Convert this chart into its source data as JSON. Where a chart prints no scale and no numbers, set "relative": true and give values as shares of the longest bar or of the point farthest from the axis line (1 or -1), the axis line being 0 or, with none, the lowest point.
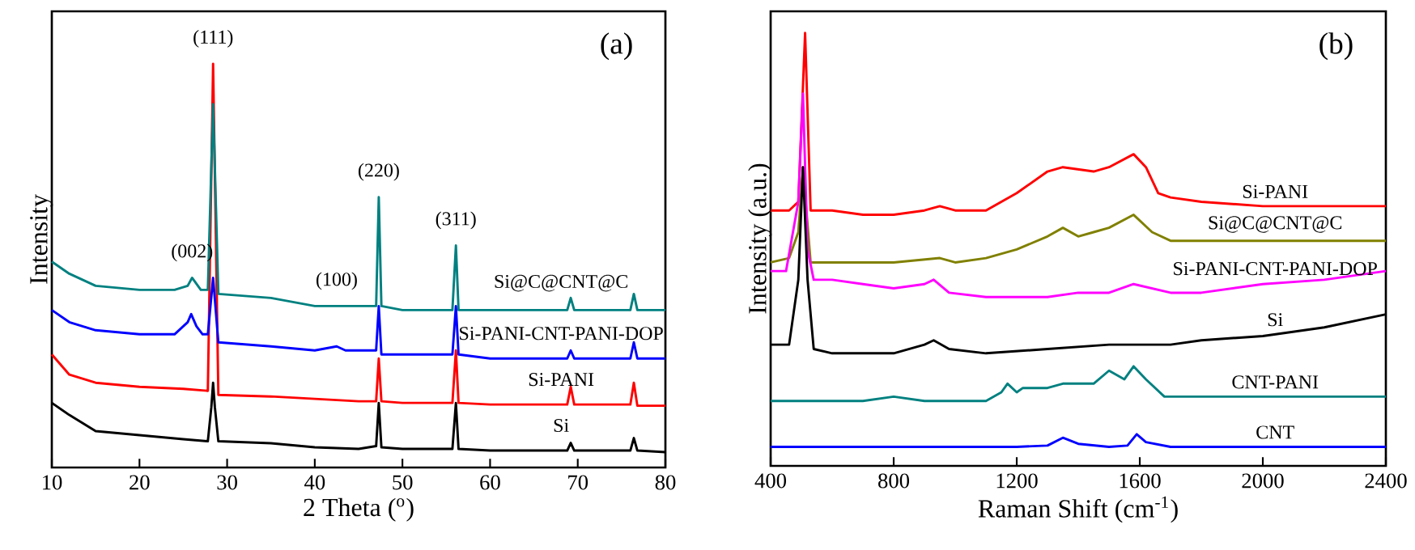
{
  "chart_data": [
    {
      "type": "line",
      "relative": true,
      "xlabel": "2 Theta ($^{o}$)",
      "ylabel": "Intensity",
      "xlim": [
        10,
        80
      ],
      "xticks": [
        10,
        20,
        30,
        40,
        50,
        60,
        70,
        80
      ],
      "annotations": [
        {
          "text": "(111)",
          "x": 28.4,
          "y": 1.0
        },
        {
          "text": "(002)",
          "x": 26,
          "y": 0.47
        },
        {
          "text": "(100)",
          "x": 42.5,
          "y": 0.3
        },
        {
          "text": "(220)",
          "x": 47.3,
          "y": 0.67
        },
        {
          "text": "(311)",
          "x": 56.1,
          "y": 0.55
        },
        "(a)"
      ],
      "series": [
        {
          "name": "Si",
          "color": "#000000",
          "x": [
            10,
            12,
            15,
            20,
            25,
            27.8,
            28.2,
            28.4,
            28.6,
            29,
            35,
            40,
            45,
            47,
            47.3,
            47.6,
            50,
            55.7,
            56.1,
            56.4,
            60,
            68.8,
            69.2,
            69.6,
            76,
            76.4,
            76.8,
            80
          ],
          "values": [
            0.16,
            0.13,
            0.09,
            0.08,
            0.07,
            0.065,
            0.15,
            0.21,
            0.15,
            0.065,
            0.06,
            0.05,
            0.046,
            0.053,
            0.16,
            0.05,
            0.046,
            0.046,
            0.16,
            0.046,
            0.042,
            0.042,
            0.061,
            0.042,
            0.042,
            0.073,
            0.042,
            0.038
          ]
        },
        {
          "name": "Si-PANI",
          "color": "#ff0000",
          "x": [
            10,
            12,
            15,
            20,
            25,
            27.8,
            28.4,
            29,
            35,
            40,
            45,
            47,
            47.3,
            47.6,
            50,
            55.7,
            56.1,
            56.4,
            60,
            68.8,
            69.2,
            69.6,
            76,
            76.4,
            76.8,
            80
          ],
          "values": [
            0.28,
            0.23,
            0.21,
            0.2,
            0.195,
            0.19,
            1.0,
            0.18,
            0.176,
            0.17,
            0.164,
            0.164,
            0.27,
            0.164,
            0.16,
            0.16,
            0.29,
            0.16,
            0.156,
            0.156,
            0.2,
            0.156,
            0.156,
            0.21,
            0.153,
            0.153
          ]
        },
        {
          "name": "Si-PANI-CNT-PANI-DOP",
          "color": "#0000ff",
          "x": [
            10,
            12,
            15,
            20,
            24,
            25.5,
            25.9,
            26.5,
            27.2,
            27.8,
            28.4,
            29,
            35,
            40,
            42.5,
            43.5,
            45,
            47,
            47.3,
            47.6,
            50,
            55.7,
            56.1,
            56.4,
            60,
            68.8,
            69.2,
            69.6,
            76,
            76.4,
            76.8,
            80
          ],
          "values": [
            0.39,
            0.36,
            0.34,
            0.33,
            0.33,
            0.36,
            0.38,
            0.35,
            0.33,
            0.33,
            0.47,
            0.31,
            0.3,
            0.29,
            0.3,
            0.29,
            0.29,
            0.29,
            0.4,
            0.28,
            0.28,
            0.28,
            0.4,
            0.28,
            0.27,
            0.27,
            0.29,
            0.27,
            0.27,
            0.31,
            0.27,
            0.27
          ]
        },
        {
          "name": "Si@C@CNT@C",
          "color": "#008080",
          "x": [
            10,
            12,
            15,
            20,
            24,
            25.5,
            26,
            27,
            27.8,
            28.4,
            29,
            35,
            40,
            42,
            45,
            47,
            47.3,
            47.6,
            50,
            55.7,
            56.1,
            56.4,
            60,
            68.8,
            69.2,
            69.6,
            76,
            76.4,
            76.8,
            80
          ],
          "values": [
            0.51,
            0.48,
            0.45,
            0.44,
            0.44,
            0.45,
            0.47,
            0.44,
            0.44,
            0.9,
            0.43,
            0.42,
            0.4,
            0.4,
            0.4,
            0.4,
            0.67,
            0.4,
            0.39,
            0.39,
            0.55,
            0.39,
            0.39,
            0.39,
            0.42,
            0.39,
            0.39,
            0.43,
            0.39,
            0.39
          ]
        }
      ]
    },
    {
      "type": "line",
      "relative": true,
      "xlabel": "Raman Shift (cm$^{-1}$)",
      "ylabel": "Intensity (a.u.)",
      "xlim": [
        400,
        2400
      ],
      "xticks": [
        400,
        800,
        1200,
        1600,
        2000,
        2400
      ],
      "annotations": [
        "(b)"
      ],
      "series": [
        {
          "name": "Si-PANI",
          "color": "#ff0000",
          "x": [
            400,
            460,
            490,
            512,
            530,
            600,
            700,
            800,
            900,
            950,
            1000,
            1100,
            1200,
            1300,
            1350,
            1450,
            1500,
            1580,
            1620,
            1660,
            1700,
            1800,
            2000,
            2400
          ],
          "values": [
            0.59,
            0.59,
            0.61,
            1.0,
            0.59,
            0.59,
            0.58,
            0.58,
            0.59,
            0.6,
            0.59,
            0.59,
            0.63,
            0.68,
            0.69,
            0.68,
            0.69,
            0.72,
            0.69,
            0.63,
            0.62,
            0.61,
            0.6,
            0.6
          ]
        },
        {
          "name": "Si@C@CNT@C",
          "color": "#808000",
          "x": [
            400,
            460,
            490,
            505,
            530,
            600,
            700,
            800,
            950,
            1000,
            1100,
            1200,
            1300,
            1350,
            1400,
            1450,
            1500,
            1580,
            1640,
            1700,
            1800,
            2000,
            2400
          ],
          "values": [
            0.47,
            0.48,
            0.54,
            0.69,
            0.47,
            0.47,
            0.47,
            0.47,
            0.48,
            0.47,
            0.48,
            0.5,
            0.53,
            0.55,
            0.53,
            0.54,
            0.55,
            0.58,
            0.54,
            0.52,
            0.52,
            0.52,
            0.52
          ]
        },
        {
          "name": "Si-PANI-CNT-PANI-DOP",
          "color": "#ff00ff",
          "x": [
            400,
            450,
            490,
            505,
            520,
            540,
            600,
            700,
            800,
            900,
            930,
            980,
            1100,
            1300,
            1400,
            1500,
            1580,
            1700,
            1800,
            2000,
            2200,
            2400
          ],
          "values": [
            0.45,
            0.45,
            0.61,
            0.86,
            0.5,
            0.43,
            0.43,
            0.42,
            0.41,
            0.42,
            0.43,
            0.4,
            0.39,
            0.39,
            0.4,
            0.4,
            0.42,
            0.4,
            0.4,
            0.42,
            0.43,
            0.45
          ]
        },
        {
          "name": "Si",
          "color": "#000000",
          "x": [
            400,
            460,
            490,
            505,
            520,
            540,
            600,
            700,
            800,
            900,
            930,
            980,
            1100,
            1300,
            1500,
            1700,
            1800,
            2000,
            2200,
            2400
          ],
          "values": [
            0.28,
            0.28,
            0.43,
            0.69,
            0.43,
            0.27,
            0.26,
            0.26,
            0.26,
            0.28,
            0.29,
            0.27,
            0.26,
            0.27,
            0.28,
            0.28,
            0.29,
            0.3,
            0.32,
            0.35
          ]
        },
        {
          "name": "CNT-PANI",
          "color": "#008080",
          "x": [
            400,
            500,
            600,
            700,
            800,
            900,
            1100,
            1150,
            1170,
            1200,
            1220,
            1300,
            1350,
            1400,
            1450,
            1500,
            1550,
            1580,
            1620,
            1680,
            1800,
            2400
          ],
          "values": [
            0.15,
            0.15,
            0.15,
            0.15,
            0.16,
            0.15,
            0.15,
            0.17,
            0.19,
            0.17,
            0.18,
            0.18,
            0.19,
            0.19,
            0.19,
            0.22,
            0.2,
            0.23,
            0.2,
            0.16,
            0.16,
            0.16
          ]
        },
        {
          "name": "CNT",
          "color": "#0000ff",
          "x": [
            400,
            1200,
            1300,
            1350,
            1400,
            1500,
            1560,
            1590,
            1620,
            1700,
            2400
          ],
          "values": [
            0.044,
            0.044,
            0.047,
            0.065,
            0.051,
            0.044,
            0.047,
            0.073,
            0.055,
            0.044,
            0.044
          ]
        }
      ]
    }
  ]
}
